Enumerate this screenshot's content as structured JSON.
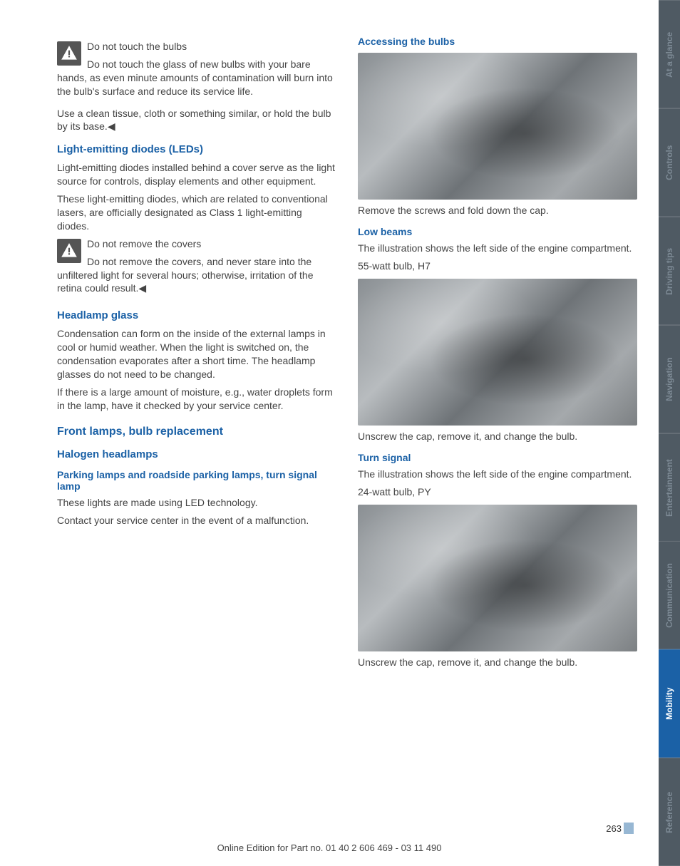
{
  "side_tabs": [
    {
      "label": "At a glance",
      "bg": "#4f5a63",
      "active": false
    },
    {
      "label": "Controls",
      "bg": "#4f5a63",
      "active": false
    },
    {
      "label": "Driving tips",
      "bg": "#4f5a63",
      "active": false
    },
    {
      "label": "Navigation",
      "bg": "#4f5a63",
      "active": false
    },
    {
      "label": "Entertainment",
      "bg": "#4f5a63",
      "active": false
    },
    {
      "label": "Communication",
      "bg": "#4f5a63",
      "active": false
    },
    {
      "label": "Mobility",
      "bg": "#1b61a6",
      "active": true
    },
    {
      "label": "Reference",
      "bg": "#4f5a63",
      "active": false
    }
  ],
  "left": {
    "warn1_title": "Do not touch the bulbs",
    "warn1_body": "Do not touch the glass of new bulbs with your bare hands, as even minute amounts of contamination will burn into the bulb's surface and reduce its service life.",
    "warn1_p2": "Use a clean tissue, cloth or something similar, or hold the bulb by its base.◀",
    "h_led": "Light-emitting diodes (LEDs)",
    "led_p1": "Light-emitting diodes installed behind a cover serve as the light source for controls, display elements and other equipment.",
    "led_p2": "These light-emitting diodes, which are related to conventional lasers, are officially designated as Class 1 light-emitting diodes.",
    "warn2_title": "Do not remove the covers",
    "warn2_body": "Do not remove the covers, and never stare into the unfiltered light for several hours; otherwise, irritation of the retina could result.◀",
    "h_glass": "Headlamp glass",
    "glass_p1": "Condensation can form on the inside of the external lamps in cool or humid weather. When the light is switched on, the condensation evaporates after a short time. The headlamp glasses do not need to be changed.",
    "glass_p2": "If there is a large amount of moisture, e.g., water droplets form in the lamp, have it checked by your service center.",
    "h_front": "Front lamps, bulb replacement",
    "h_halogen": "Halogen headlamps",
    "h_parking": "Parking lamps and roadside parking lamps, turn signal lamp",
    "parking_p1": "These lights are made using LED technology.",
    "parking_p2": "Contact your service center in the event of a malfunction."
  },
  "right": {
    "h_access": "Accessing the bulbs",
    "access_p": "Remove the screws and fold down the cap.",
    "h_low": "Low beams",
    "low_p1": "The illustration shows the left side of the engine compartment.",
    "low_p2": "55-watt bulb, H7",
    "low_p3": "Unscrew the cap, remove it, and change the bulb.",
    "h_turn": "Turn signal",
    "turn_p1": "The illustration shows the left side of the engine compartment.",
    "turn_p2": "24-watt bulb, PY",
    "turn_p3": "Unscrew the cap, remove it, and change the bulb."
  },
  "page_number": "263",
  "footer": "Online Edition for Part no. 01 40 2 606 469 - 03 11 490",
  "colors": {
    "heading_blue": "#1b61a6",
    "tab_inactive_bg": "#4f5a63",
    "tab_active_bg": "#1b61a6",
    "tab_inactive_text": "#7d8a95",
    "pagenum_box": "#97b7d3"
  }
}
